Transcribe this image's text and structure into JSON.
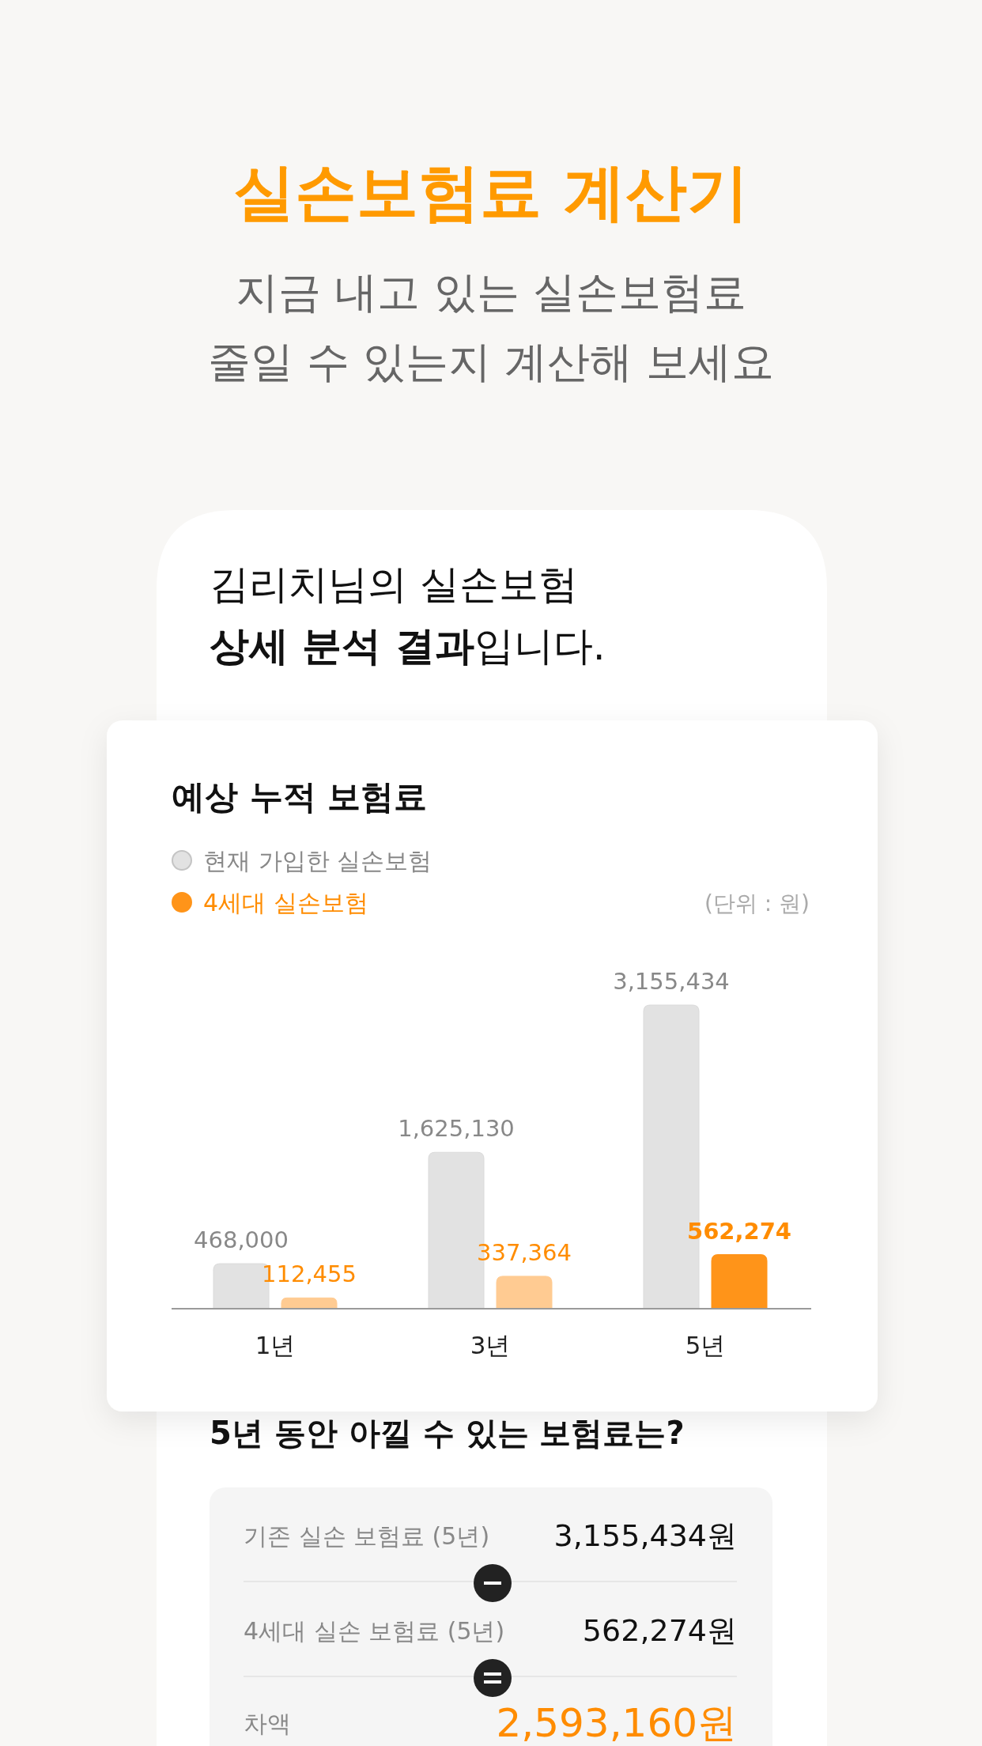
{
  "chart_data": {
    "type": "bar",
    "title": "예상 누적 보험료",
    "categories": [
      "1년",
      "3년",
      "5년"
    ],
    "series": [
      {
        "name": "현재 가입한 실손보험",
        "color": "#e2e2e2",
        "values": [
          468000,
          1625130,
          3155434
        ],
        "value_labels": [
          "468,000",
          "1,625,130",
          "3,155,434"
        ]
      },
      {
        "name": "4세대 실손보험",
        "color": "#ff9419",
        "colors": [
          "#ffcb92",
          "#ffcb92",
          "#ff9419"
        ],
        "values": [
          112455,
          337364,
          562274
        ],
        "value_labels": [
          "112,455",
          "337,364",
          "562,274"
        ]
      }
    ],
    "legend": "top left",
    "annotations": [
      "실손보험료 계산기",
      "지금 내고 있는 실손보험료",
      "줄일 수 있는지 계산해 보세요",
      "김리치님의 실손보험",
      "**상세 분석 결과**입니다.",
      "(단위 : 원)",
      "5년 동안 아낄 수 있는 보험료는?",
      "기존 실손 보험료 (5년)",
      "3,155,434원",
      "4세대 실손 보험료 (5년)",
      "562,274원",
      "차액",
      "2,593,160원"
    ]
  }
}
